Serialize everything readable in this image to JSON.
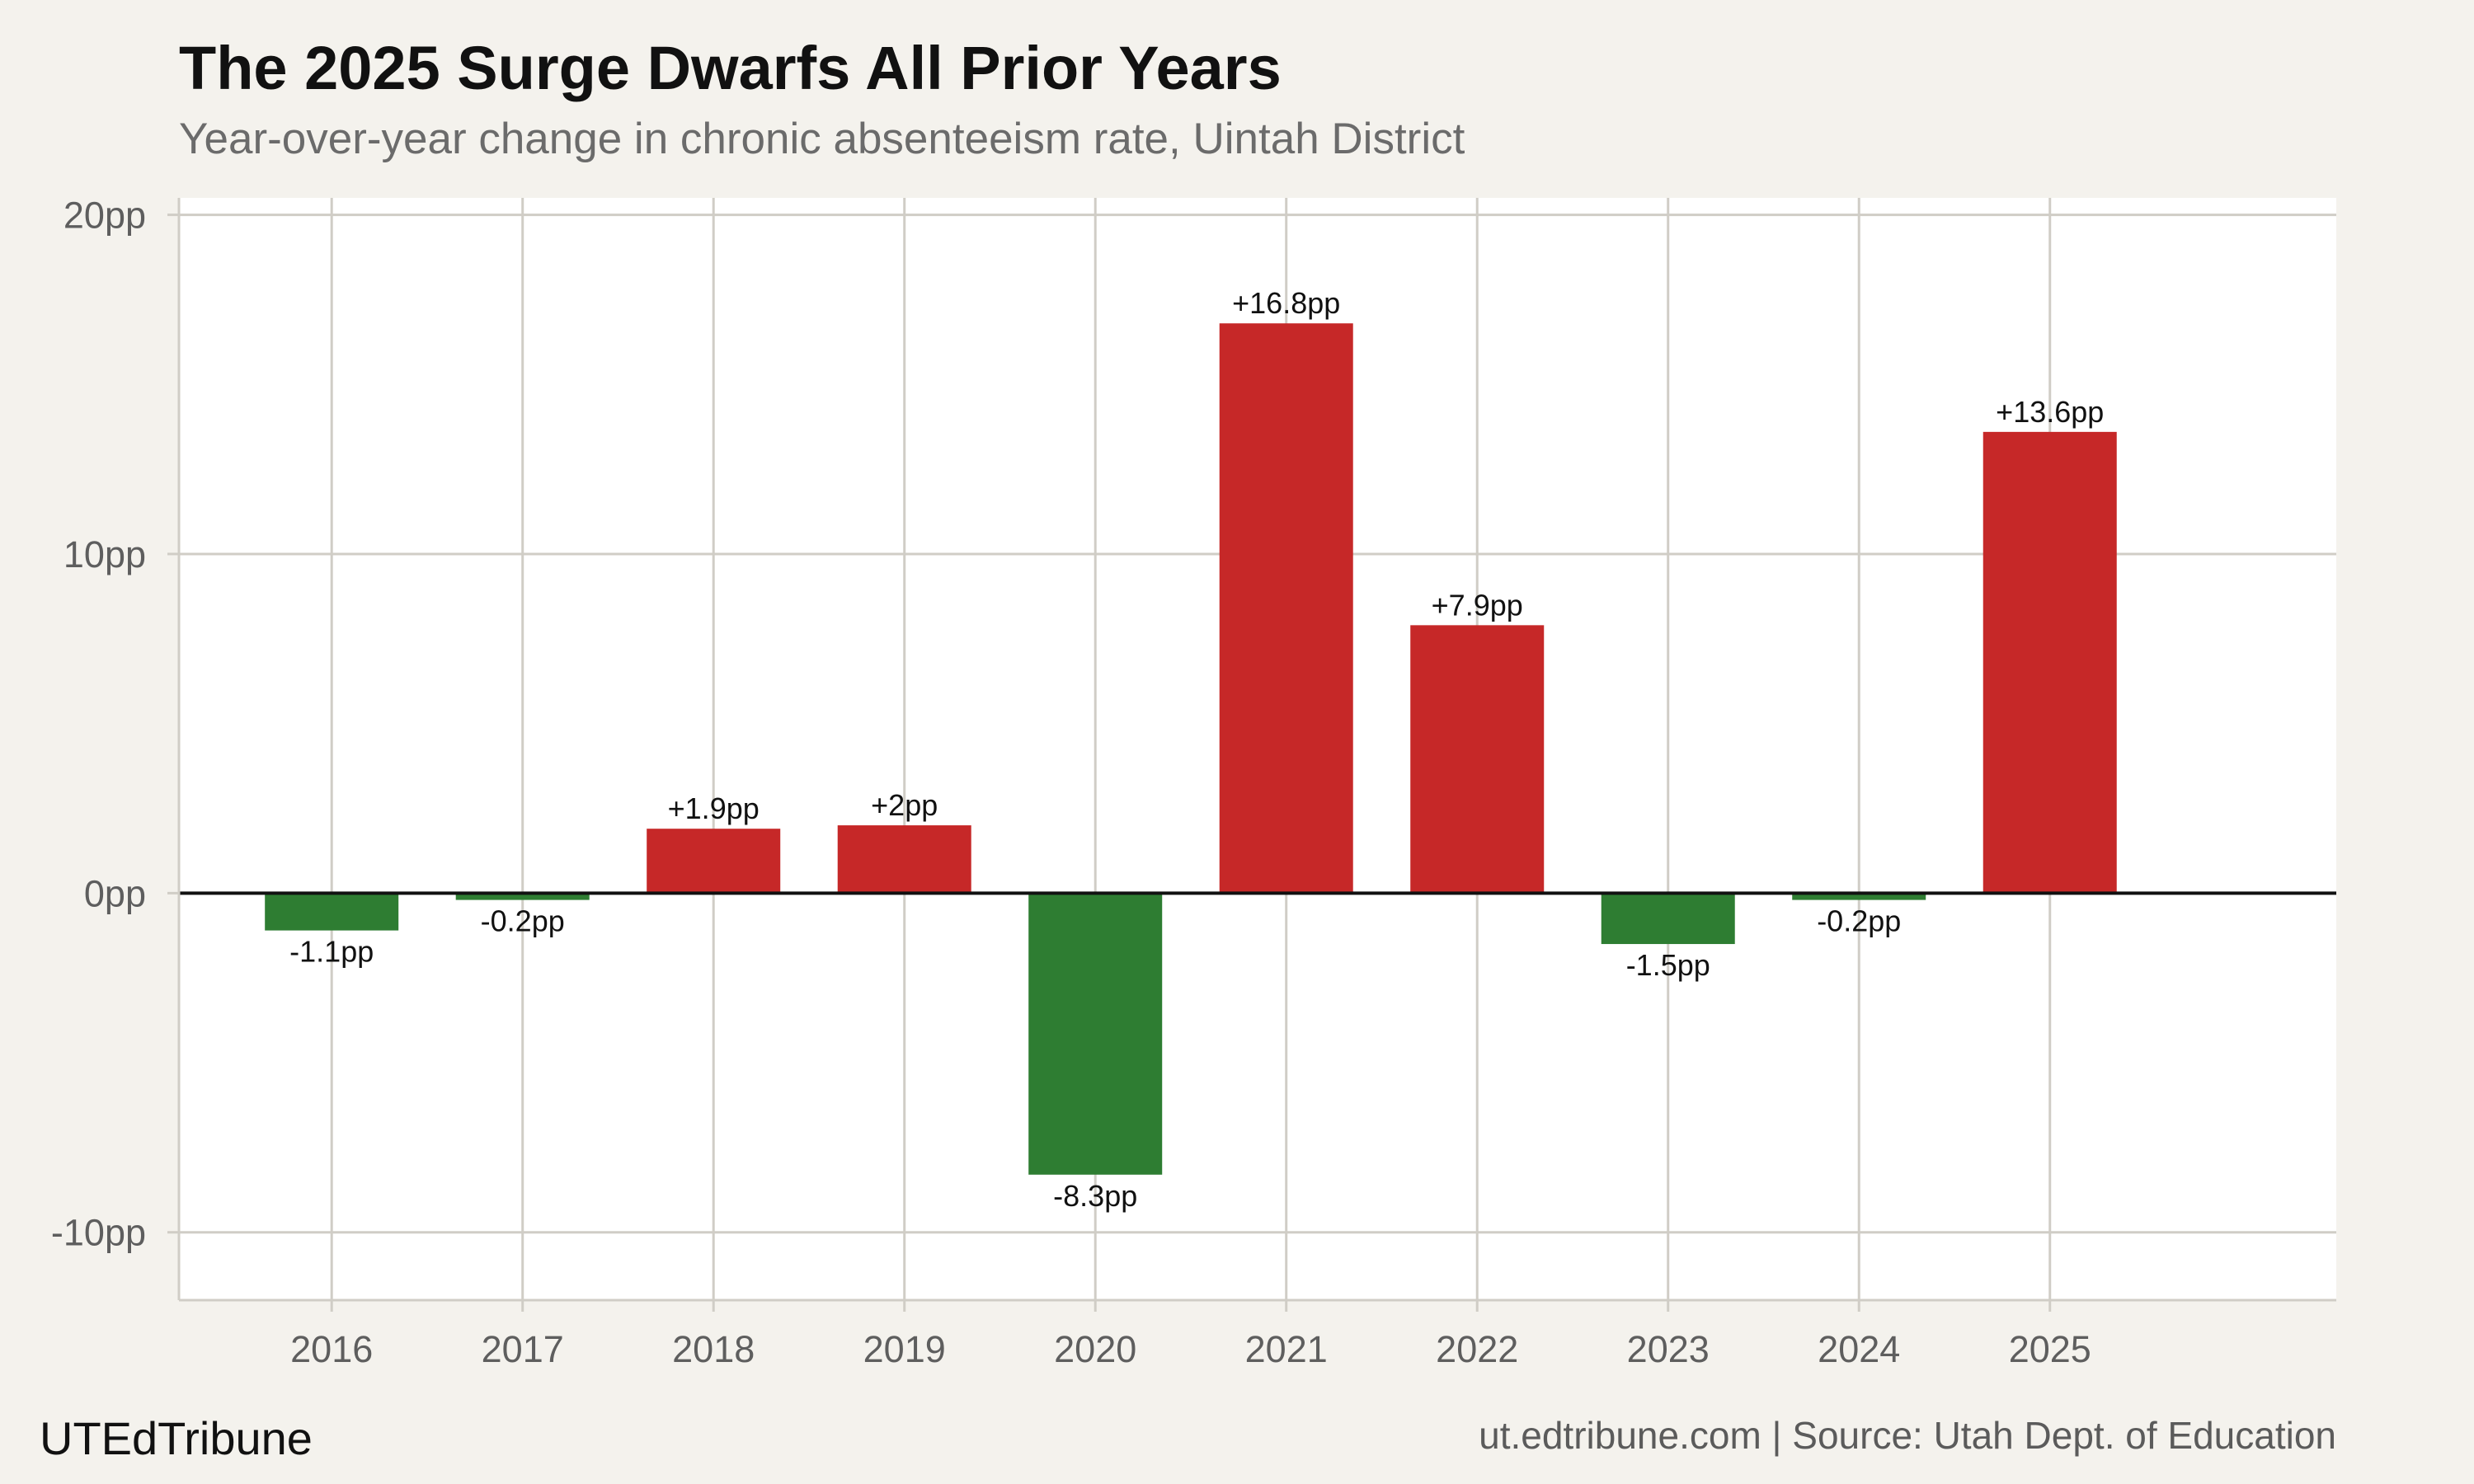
{
  "header": {
    "title": "The 2025 Surge Dwarfs All Prior Years",
    "subtitle": "Year-over-year change in chronic absenteeism rate, Uintah District"
  },
  "footer": {
    "brand": "UTEdTribune",
    "source": "ut.edtribune.com | Source: Utah Dept. of Education"
  },
  "colors": {
    "background": "#f4f2ed",
    "panel": "#ffffff",
    "increase": "#c62828",
    "decrease": "#2e7d32",
    "grid": "#d0cdc6",
    "zero_line": "#111111"
  },
  "chart_data": {
    "type": "bar",
    "categories": [
      "2016",
      "2017",
      "2018",
      "2019",
      "2020",
      "2021",
      "2022",
      "2023",
      "2024",
      "2025"
    ],
    "values": [
      -1.1,
      -0.2,
      1.9,
      2.0,
      -8.3,
      16.8,
      7.9,
      -1.5,
      -0.2,
      13.6
    ],
    "data_labels": [
      "-1.1pp",
      "-0.2pp",
      "+1.9pp",
      "+2pp",
      "-8.3pp",
      "+16.8pp",
      "+7.9pp",
      "-1.5pp",
      "-0.2pp",
      "+13.6pp"
    ],
    "y_ticks": [
      -10,
      0,
      10,
      20
    ],
    "y_tick_labels": [
      "-10pp",
      "0pp",
      "10pp",
      "20pp"
    ],
    "ylim": [
      -12,
      20.5
    ],
    "xlim": [
      2015.2,
      2026.5
    ],
    "grid": true,
    "legend": "none",
    "xlabel": "",
    "ylabel": ""
  }
}
